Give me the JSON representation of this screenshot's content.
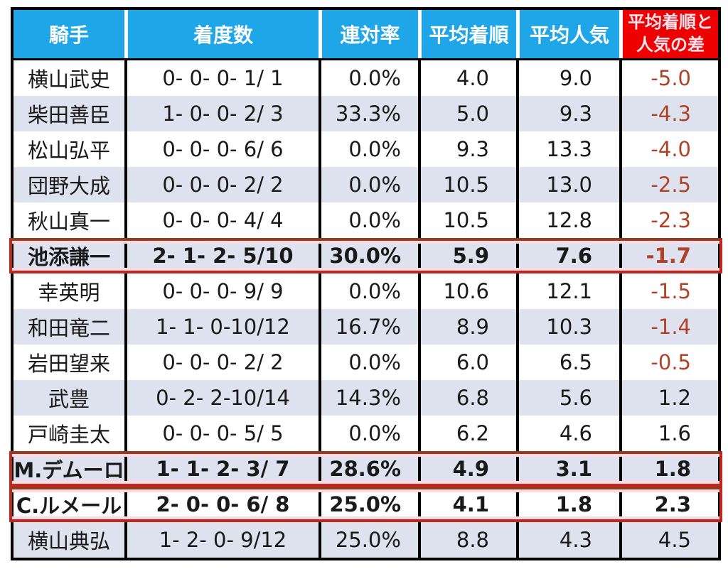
{
  "chart_data": {
    "type": "table",
    "columns": [
      "騎手",
      "着度数",
      "連対率",
      "平均着順",
      "平均人気",
      "平均着順と人気の差"
    ],
    "diff_header_lines": [
      "平均着順と",
      "人気の差"
    ],
    "rows": [
      {
        "jockey": "横山武史",
        "record": "0- 0- 0- 1/ 1",
        "rate": "0.0%",
        "avg_finish": "4.0",
        "avg_popularity": "9.0",
        "diff": "-5.0",
        "highlighted": false
      },
      {
        "jockey": "柴田善臣",
        "record": "1- 0- 0- 2/ 3",
        "rate": "33.3%",
        "avg_finish": "5.0",
        "avg_popularity": "9.3",
        "diff": "-4.3",
        "highlighted": false
      },
      {
        "jockey": "松山弘平",
        "record": "0- 0- 0- 6/ 6",
        "rate": "0.0%",
        "avg_finish": "9.3",
        "avg_popularity": "13.3",
        "diff": "-4.0",
        "highlighted": false
      },
      {
        "jockey": "団野大成",
        "record": "0- 0- 0- 2/ 2",
        "rate": "0.0%",
        "avg_finish": "10.5",
        "avg_popularity": "13.0",
        "diff": "-2.5",
        "highlighted": false
      },
      {
        "jockey": "秋山真一",
        "record": "0- 0- 0- 4/ 4",
        "rate": "0.0%",
        "avg_finish": "10.5",
        "avg_popularity": "12.8",
        "diff": "-2.3",
        "highlighted": false
      },
      {
        "jockey": "池添謙一",
        "record": "2- 1- 2- 5/10",
        "rate": "30.0%",
        "avg_finish": "5.9",
        "avg_popularity": "7.6",
        "diff": "-1.7",
        "highlighted": true
      },
      {
        "jockey": "幸英明",
        "record": "0- 0- 0- 9/ 9",
        "rate": "0.0%",
        "avg_finish": "10.6",
        "avg_popularity": "12.1",
        "diff": "-1.5",
        "highlighted": false
      },
      {
        "jockey": "和田竜二",
        "record": "1- 1- 0-10/12",
        "rate": "16.7%",
        "avg_finish": "8.9",
        "avg_popularity": "10.3",
        "diff": "-1.4",
        "highlighted": false
      },
      {
        "jockey": "岩田望来",
        "record": "0- 0- 0- 2/ 2",
        "rate": "0.0%",
        "avg_finish": "6.0",
        "avg_popularity": "6.5",
        "diff": "-0.5",
        "highlighted": false
      },
      {
        "jockey": "武豊",
        "record": "0- 2- 2-10/14",
        "rate": "14.3%",
        "avg_finish": "6.8",
        "avg_popularity": "5.6",
        "diff": "1.2",
        "highlighted": false
      },
      {
        "jockey": "戸崎圭太",
        "record": "0- 0- 0- 5/ 5",
        "rate": "0.0%",
        "avg_finish": "6.2",
        "avg_popularity": "4.6",
        "diff": "1.6",
        "highlighted": false
      },
      {
        "jockey": "M.デムーロ",
        "record": "1- 1- 2- 3/ 7",
        "rate": "28.6%",
        "avg_finish": "4.9",
        "avg_popularity": "3.1",
        "diff": "1.8",
        "highlighted": true
      },
      {
        "jockey": "C.ルメール",
        "record": "2- 0- 0- 6/ 8",
        "rate": "25.0%",
        "avg_finish": "4.1",
        "avg_popularity": "1.8",
        "diff": "2.3",
        "highlighted": true
      },
      {
        "jockey": "横山典弘",
        "record": "1- 2- 0- 9/12",
        "rate": "25.0%",
        "avg_finish": "8.8",
        "avg_popularity": "4.3",
        "diff": "4.5",
        "highlighted": false
      }
    ]
  },
  "colors": {
    "header_blue": "#1EA6E9",
    "header_red": "#EE0000",
    "header_text": "#FFFFFF",
    "red_header_text": "#FFE3EC",
    "row_alt": "#DDE2EE",
    "grid_black": "#000000",
    "negative_value": "#B04227",
    "highlight_border_red": "#C2261C",
    "highlight_border_brown": "#953A1E",
    "highlight_glow_pink": "#FFD9E3"
  }
}
